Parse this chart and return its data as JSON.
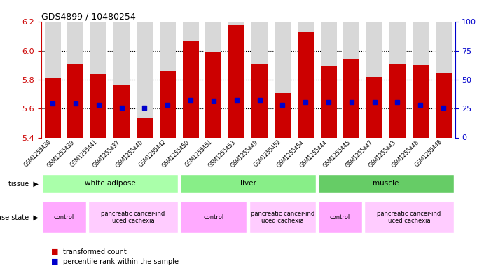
{
  "title": "GDS4899 / 10480254",
  "samples": [
    "GSM1255438",
    "GSM1255439",
    "GSM1255441",
    "GSM1255437",
    "GSM1255440",
    "GSM1255442",
    "GSM1255450",
    "GSM1255451",
    "GSM1255453",
    "GSM1255449",
    "GSM1255452",
    "GSM1255454",
    "GSM1255444",
    "GSM1255445",
    "GSM1255447",
    "GSM1255443",
    "GSM1255446",
    "GSM1255448"
  ],
  "bar_values": [
    5.81,
    5.91,
    5.84,
    5.76,
    5.54,
    5.86,
    6.07,
    5.99,
    6.18,
    5.91,
    5.71,
    6.13,
    5.89,
    5.94,
    5.82,
    5.91,
    5.9,
    5.85
  ],
  "percentile_values": [
    5.635,
    5.635,
    5.625,
    5.605,
    5.605,
    5.625,
    5.66,
    5.655,
    5.66,
    5.66,
    5.625,
    5.645,
    5.645,
    5.645,
    5.645,
    5.645,
    5.625,
    5.605
  ],
  "ymin": 5.4,
  "ymax": 6.2,
  "yticks": [
    5.4,
    5.6,
    5.8,
    6.0,
    6.2
  ],
  "right_yticks": [
    0,
    25,
    50,
    75,
    100
  ],
  "bar_color": "#cc0000",
  "percentile_color": "#0000cc",
  "left_axis_color": "#cc0000",
  "right_axis_color": "#0000cc",
  "tissue_groups": [
    {
      "label": "white adipose",
      "start": 0,
      "end": 6,
      "color": "#aaffaa"
    },
    {
      "label": "liver",
      "start": 6,
      "end": 12,
      "color": "#88ee88"
    },
    {
      "label": "muscle",
      "start": 12,
      "end": 18,
      "color": "#66cc66"
    }
  ],
  "disease_groups": [
    {
      "label": "control",
      "start": 0,
      "end": 2,
      "color": "#ffaaff"
    },
    {
      "label": "pancreatic cancer-ind\nuced cachexia",
      "start": 2,
      "end": 6,
      "color": "#ffccff"
    },
    {
      "label": "control",
      "start": 6,
      "end": 9,
      "color": "#ffaaff"
    },
    {
      "label": "pancreatic cancer-ind\nuced cachexia",
      "start": 9,
      "end": 12,
      "color": "#ffccff"
    },
    {
      "label": "control",
      "start": 12,
      "end": 14,
      "color": "#ffaaff"
    },
    {
      "label": "pancreatic cancer-ind\nuced cachexia",
      "start": 14,
      "end": 18,
      "color": "#ffccff"
    }
  ]
}
